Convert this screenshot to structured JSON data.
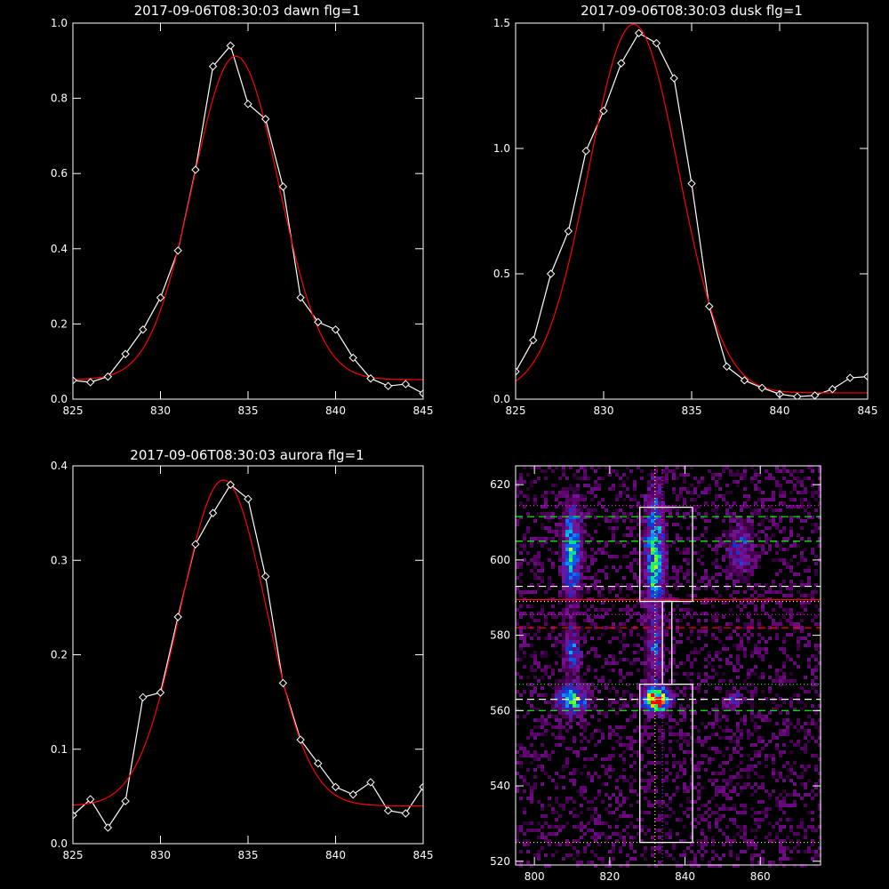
{
  "chart_data": [
    {
      "type": "line",
      "title": "2017-09-06T08:30:03 dawn flg=1",
      "xlabel": "",
      "ylabel": "",
      "xlim": [
        825,
        845
      ],
      "ylim": [
        0,
        1.0
      ],
      "xticks": [
        "825",
        "830",
        "835",
        "840",
        "845"
      ],
      "yticks": [
        "0.0",
        "0.2",
        "0.4",
        "0.6",
        "0.8",
        "1.0"
      ],
      "series": [
        {
          "kind": "data",
          "color": "#ffffff",
          "x": [
            825,
            826,
            827,
            828,
            829,
            830,
            831,
            832,
            833,
            834,
            835,
            836,
            837,
            838,
            839,
            840,
            841,
            842,
            843,
            844,
            845
          ],
          "y": [
            0.05,
            0.045,
            0.06,
            0.12,
            0.185,
            0.27,
            0.395,
            0.61,
            0.885,
            0.94,
            0.785,
            0.745,
            0.565,
            0.27,
            0.205,
            0.185,
            0.11,
            0.055,
            0.035,
            0.04,
            0.015
          ]
        },
        {
          "kind": "fit",
          "color": "#ff0000",
          "gauss": {
            "a": 0.86,
            "mu": 834.3,
            "sigma": 2.45,
            "c": 0.052
          }
        }
      ]
    },
    {
      "type": "line",
      "title": "2017-09-06T08:30:03 dusk flg=1",
      "xlabel": "",
      "ylabel": "",
      "xlim": [
        825,
        845
      ],
      "ylim": [
        0,
        1.5
      ],
      "xticks": [
        "825",
        "830",
        "835",
        "840",
        "845"
      ],
      "yticks": [
        "0.0",
        "0.5",
        "1.0",
        "1.5"
      ],
      "series": [
        {
          "kind": "data",
          "color": "#ffffff",
          "x": [
            825,
            826,
            827,
            828,
            829,
            830,
            831,
            832,
            833,
            834,
            835,
            836,
            837,
            838,
            839,
            840,
            841,
            842,
            843,
            844,
            845
          ],
          "y": [
            0.11,
            0.235,
            0.5,
            0.67,
            0.99,
            1.15,
            1.34,
            1.46,
            1.42,
            1.28,
            0.86,
            0.37,
            0.13,
            0.075,
            0.045,
            0.02,
            0.01,
            0.015,
            0.04,
            0.085,
            0.09
          ]
        },
        {
          "kind": "fit",
          "color": "#ff0000",
          "gauss": {
            "a": 1.47,
            "mu": 831.7,
            "sigma": 2.55,
            "c": 0.025
          }
        }
      ]
    },
    {
      "type": "line",
      "title": "2017-09-06T08:30:03 aurora flg=1",
      "xlabel": "",
      "ylabel": "",
      "xlim": [
        825,
        845
      ],
      "ylim": [
        0,
        0.4
      ],
      "xticks": [
        "825",
        "830",
        "835",
        "840",
        "845"
      ],
      "yticks": [
        "0.0",
        "0.1",
        "0.2",
        "0.3",
        "0.4"
      ],
      "series": [
        {
          "kind": "data",
          "color": "#ffffff",
          "x": [
            825,
            826,
            827,
            828,
            829,
            830,
            831,
            832,
            833,
            834,
            835,
            836,
            837,
            838,
            839,
            840,
            841,
            842,
            843,
            844,
            845
          ],
          "y": [
            0.03,
            0.047,
            0.017,
            0.045,
            0.155,
            0.16,
            0.24,
            0.317,
            0.35,
            0.38,
            0.365,
            0.283,
            0.17,
            0.11,
            0.085,
            0.06,
            0.052,
            0.065,
            0.035,
            0.032,
            0.06
          ]
        },
        {
          "kind": "fit",
          "color": "#ff0000",
          "gauss": {
            "a": 0.345,
            "mu": 833.6,
            "sigma": 2.45,
            "c": 0.04
          }
        }
      ]
    },
    {
      "type": "heatmap",
      "title": "",
      "xlabel": "",
      "ylabel": "",
      "xlim": [
        795,
        876
      ],
      "ylim": [
        519,
        625
      ],
      "xticks": [
        800,
        820,
        840,
        860
      ],
      "yticks": [
        520,
        540,
        560,
        580,
        600,
        620
      ],
      "colormap": [
        "#000000",
        "#5a0068",
        "#7a1496",
        "#1030c8",
        "#1080ff",
        "#00c8d8",
        "#30ff30",
        "#ffff00",
        "#ff0000"
      ],
      "blobs": [
        {
          "x": 810,
          "y": 602,
          "sx": 1.6,
          "sy": 8,
          "amp": 0.55
        },
        {
          "x": 810,
          "y": 576,
          "sx": 1.4,
          "sy": 4,
          "amp": 0.35
        },
        {
          "x": 810,
          "y": 563,
          "sx": 2.6,
          "sy": 2.5,
          "amp": 0.6
        },
        {
          "x": 832,
          "y": 601,
          "sx": 1.7,
          "sy": 10,
          "amp": 0.6
        },
        {
          "x": 832,
          "y": 575,
          "sx": 1.4,
          "sy": 5,
          "amp": 0.3
        },
        {
          "x": 832.5,
          "y": 563,
          "sx": 2.2,
          "sy": 2.2,
          "amp": 0.95
        },
        {
          "x": 833,
          "y": 562.5,
          "sx": 0.7,
          "sy": 0.8,
          "amp": 0.4
        },
        {
          "x": 855,
          "y": 603,
          "sx": 2.5,
          "sy": 5,
          "amp": 0.22
        },
        {
          "x": 853,
          "y": 563,
          "sx": 1.5,
          "sy": 1.5,
          "amp": 0.25
        }
      ],
      "boxes": [
        {
          "x0": 828,
          "x1": 842,
          "y0": 589,
          "y1": 614
        },
        {
          "x0": 834,
          "x1": 836.5,
          "y0": 567,
          "y1": 589
        },
        {
          "x0": 828,
          "x1": 842,
          "y0": 525,
          "y1": 567
        }
      ],
      "hlines": [
        {
          "y": 614.5,
          "color": "#ff00ff",
          "dash": "dot"
        },
        {
          "y": 611.5,
          "color": "#00ff00",
          "dash": "dash"
        },
        {
          "y": 605,
          "color": "#00ff00",
          "dash": "dash"
        },
        {
          "y": 593,
          "color": "#ffffff",
          "dash": "dash"
        },
        {
          "y": 589.5,
          "color": "#ff0000",
          "dash": "solid"
        },
        {
          "y": 589,
          "color": "#ffffff",
          "dash": "dot"
        },
        {
          "y": 585.5,
          "color": "#ff00ff",
          "dash": "dot"
        },
        {
          "y": 582,
          "color": "#ff0000",
          "dash": "dash"
        },
        {
          "y": 567,
          "color": "#00ff00",
          "dash": "dot"
        },
        {
          "y": 563,
          "color": "#ffffff",
          "dash": "dash"
        },
        {
          "y": 560,
          "color": "#00ff00",
          "dash": "dash"
        },
        {
          "y": 525,
          "color": "#ffff00",
          "dash": "dot"
        }
      ],
      "vlines": [
        {
          "x": 832,
          "color": "#ffff00",
          "dash": "dot"
        },
        {
          "x": 834,
          "color": "#ff00ff",
          "dash": "dot"
        }
      ],
      "marker": {
        "x": 833,
        "y": 562.5,
        "color": "#ff0000"
      }
    }
  ]
}
